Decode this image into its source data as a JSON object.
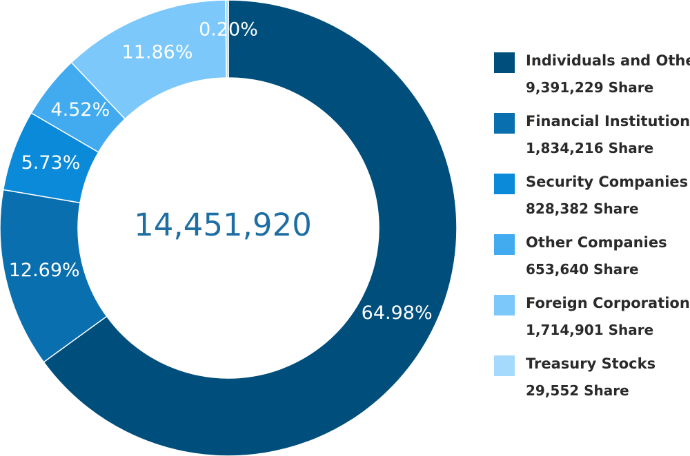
{
  "chart_data": {
    "type": "pie",
    "variant": "donut",
    "center_total": "14,451,920",
    "colors": [
      "#004e7c",
      "#0a6fae",
      "#0a8ad8",
      "#42abf0",
      "#7cc8fb",
      "#a6dafd"
    ],
    "slices": [
      {
        "name": "Individuals and Other",
        "percent": 64.98,
        "percent_label": "64.98%",
        "shares_label": "9,391,229 Share"
      },
      {
        "name": "Financial Institutions",
        "percent": 12.69,
        "percent_label": "12.69%",
        "shares_label": "1,834,216 Share"
      },
      {
        "name": "Security Companies",
        "percent": 5.73,
        "percent_label": "5.73%",
        "shares_label": "828,382 Share"
      },
      {
        "name": "Other Companies",
        "percent": 4.52,
        "percent_label": "4.52%",
        "shares_label": "653,640 Share"
      },
      {
        "name": "Foreign Corporations",
        "percent": 11.86,
        "percent_label": "11.86%",
        "shares_label": "1,714,901 Share"
      },
      {
        "name": "Treasury Stocks",
        "percent": 0.2,
        "percent_label": "0.20%",
        "shares_label": "29,552 Share"
      }
    ],
    "legend_position": "right"
  }
}
